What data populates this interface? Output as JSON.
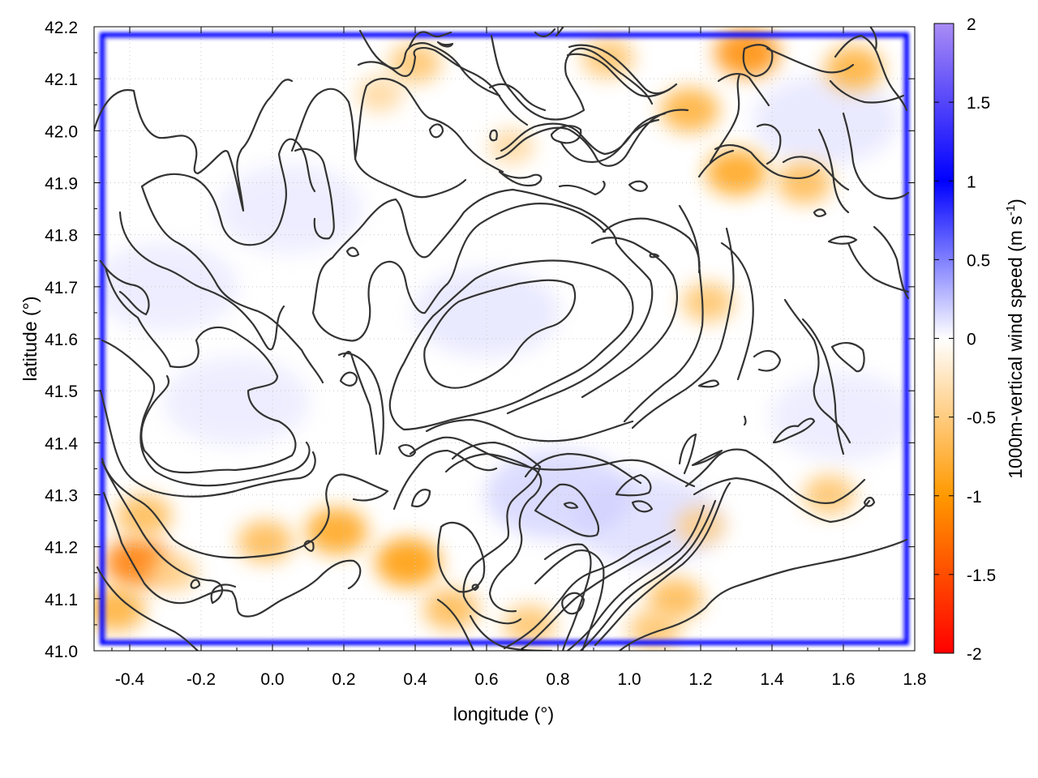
{
  "chart_data": {
    "type": "heatmap",
    "title": "",
    "xlabel": "longitude (°)",
    "ylabel": "latitude (°)",
    "colorbar": {
      "label_main": "1000m-vertical wind speed (m s",
      "label_sup": "-1",
      "label_close": ")",
      "range": [
        -2,
        2
      ],
      "ticks": [
        2,
        1.5,
        1,
        0.5,
        0,
        -0.5,
        -1,
        -1.5,
        -2
      ],
      "tick_labels": [
        "2",
        "1.5",
        "1",
        "0.5",
        "0",
        "-0.5",
        "-1",
        "-1.5",
        "-2"
      ],
      "colors": [
        {
          "value": -2,
          "color": "#ff0000"
        },
        {
          "value": -1,
          "color": "#ff9900"
        },
        {
          "value": 0,
          "color": "#ffffff"
        },
        {
          "value": 1,
          "color": "#0000ff"
        },
        {
          "value": 2,
          "color": "#a98cf5"
        }
      ]
    },
    "xlim": [
      -0.5,
      1.8
    ],
    "ylim": [
      41.0,
      42.2
    ],
    "x_ticks": [
      -0.4,
      -0.2,
      0.0,
      0.2,
      0.4,
      0.6,
      0.8,
      1.0,
      1.2,
      1.4,
      1.6,
      1.8
    ],
    "x_tick_labels": [
      "-0.4",
      "-0.2",
      "0.0",
      "0.2",
      "0.4",
      "0.6",
      "0.8",
      "1.0",
      "1.2",
      "1.4",
      "1.6",
      "1.8"
    ],
    "y_ticks": [
      41.0,
      41.1,
      41.2,
      41.3,
      41.4,
      41.5,
      41.6,
      41.7,
      41.8,
      41.9,
      42.0,
      42.1,
      42.2
    ],
    "y_tick_labels": [
      "41.0",
      "41.1",
      "41.2",
      "41.3",
      "41.4",
      "41.5",
      "41.6",
      "41.7",
      "41.8",
      "41.9",
      "42.0",
      "42.1",
      "42.2"
    ],
    "grid": true,
    "boundary_value": 1.0,
    "downdraft_cells": [
      {
        "lon": -0.38,
        "lat": 41.17,
        "w": -1.2
      },
      {
        "lon": -0.44,
        "lat": 41.08,
        "w": -0.8
      },
      {
        "lon": -0.36,
        "lat": 41.26,
        "w": -0.7
      },
      {
        "lon": -0.28,
        "lat": 41.15,
        "w": -0.5
      },
      {
        "lon": -0.02,
        "lat": 41.21,
        "w": -0.7
      },
      {
        "lon": 0.18,
        "lat": 41.23,
        "w": -0.9
      },
      {
        "lon": 0.38,
        "lat": 41.17,
        "w": -1.0
      },
      {
        "lon": 0.5,
        "lat": 41.08,
        "w": -0.7
      },
      {
        "lon": 0.72,
        "lat": 41.05,
        "w": -0.6
      },
      {
        "lon": 1.13,
        "lat": 41.1,
        "w": -0.7
      },
      {
        "lon": 1.07,
        "lat": 41.04,
        "w": -0.6
      },
      {
        "lon": 1.2,
        "lat": 41.24,
        "w": -0.5
      },
      {
        "lon": 1.56,
        "lat": 41.3,
        "w": -0.6
      },
      {
        "lon": 1.22,
        "lat": 41.67,
        "w": -0.6
      },
      {
        "lon": 1.3,
        "lat": 41.92,
        "w": -0.9
      },
      {
        "lon": 1.49,
        "lat": 41.9,
        "w": -0.7
      },
      {
        "lon": 1.17,
        "lat": 42.04,
        "w": -0.8
      },
      {
        "lon": 1.33,
        "lat": 42.15,
        "w": -1.1
      },
      {
        "lon": 1.63,
        "lat": 42.12,
        "w": -0.8
      },
      {
        "lon": 0.94,
        "lat": 42.14,
        "w": -0.6
      },
      {
        "lon": 0.4,
        "lat": 42.13,
        "w": -0.6
      },
      {
        "lon": 0.3,
        "lat": 42.07,
        "w": -0.4
      },
      {
        "lon": 0.67,
        "lat": 41.97,
        "w": -0.4
      }
    ],
    "updraft_cells": [
      {
        "lon": 0.6,
        "lat": 41.65,
        "w": 0.15
      },
      {
        "lon": -0.1,
        "lat": 41.48,
        "w": 0.12
      },
      {
        "lon": 0.8,
        "lat": 41.3,
        "w": 0.25
      },
      {
        "lon": 1.05,
        "lat": 41.25,
        "w": 0.2
      },
      {
        "lon": 1.6,
        "lat": 41.45,
        "w": 0.12
      },
      {
        "lon": -0.3,
        "lat": 41.7,
        "w": 0.12
      },
      {
        "lon": 0.05,
        "lat": 41.85,
        "w": 0.12
      },
      {
        "lon": 1.55,
        "lat": 42.02,
        "w": 0.15
      }
    ]
  }
}
